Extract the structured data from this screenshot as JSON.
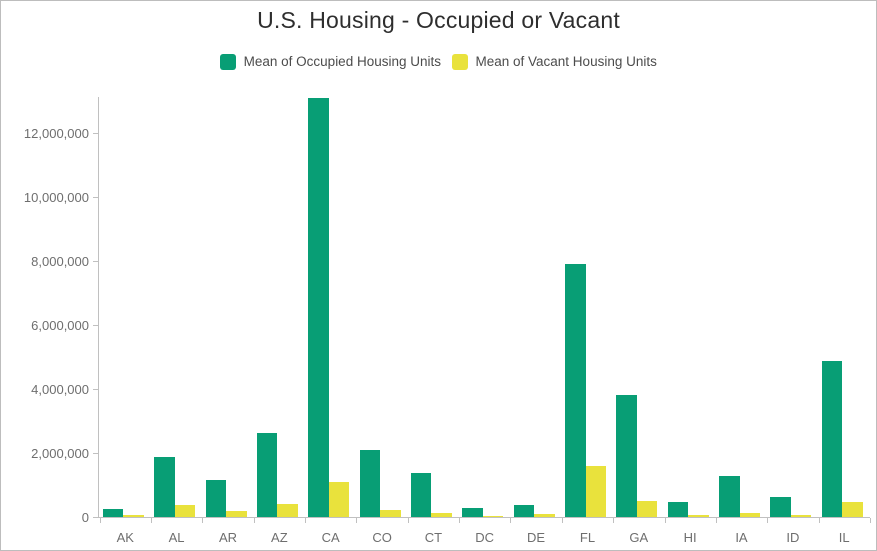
{
  "chart": {
    "title": "U.S. Housing - Occupied or Vacant",
    "legend": [
      {
        "label": "Mean of Occupied Housing Units"
      },
      {
        "label": "Mean of Vacant Housing Units"
      }
    ]
  },
  "chart_data": {
    "type": "bar",
    "title": "U.S. Housing - Occupied or Vacant",
    "categories": [
      "AK",
      "AL",
      "AR",
      "AZ",
      "CA",
      "CO",
      "CT",
      "DC",
      "DE",
      "FL",
      "GA",
      "HI",
      "IA",
      "ID",
      "IL"
    ],
    "series": [
      {
        "name": "Mean of Occupied Housing Units",
        "color": "#089e75",
        "values": [
          250000,
          1880000,
          1160000,
          2620000,
          13100000,
          2110000,
          1380000,
          280000,
          370000,
          7920000,
          3800000,
          460000,
          1270000,
          625000,
          4870000
        ]
      },
      {
        "name": "Mean of Vacant Housing Units",
        "color": "#e9e23c",
        "values": [
          55000,
          385000,
          195000,
          410000,
          1080000,
          230000,
          130000,
          40000,
          80000,
          1610000,
          490000,
          70000,
          125000,
          75000,
          485000
        ]
      }
    ],
    "xlabel": "",
    "ylabel": "",
    "ylim": [
      0,
      13125000
    ],
    "y_ticks": [
      0,
      2000000,
      4000000,
      6000000,
      8000000,
      10000000,
      12000000
    ],
    "y_tick_labels": [
      "0",
      "2,000,000",
      "4,000,000",
      "6,000,000",
      "8,000,000",
      "10,000,000",
      "12,000,000"
    ],
    "grid": false,
    "legend_position": "top"
  }
}
